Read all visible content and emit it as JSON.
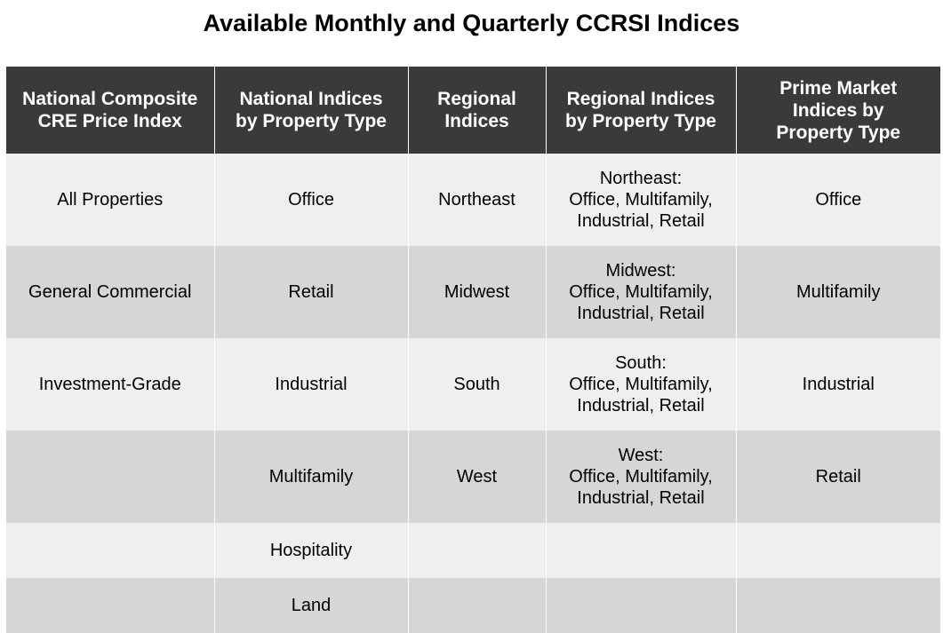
{
  "title": "Available Monthly and Quarterly CCRSI Indices",
  "table": {
    "headers": [
      {
        "line1": "National Composite",
        "line2": "CRE Price Index",
        "line3": ""
      },
      {
        "line1": "National Indices",
        "line2": "by Property Type",
        "line3": ""
      },
      {
        "line1": "Regional",
        "line2": "Indices",
        "line3": ""
      },
      {
        "line1": "Regional Indices",
        "line2": "by Property Type",
        "line3": ""
      },
      {
        "line1": "Prime Market",
        "line2": "Indices by",
        "line3": "Property Type"
      }
    ],
    "rows": [
      {
        "composite": "All Properties",
        "national": "Office",
        "regional": "Northeast",
        "regional_by_type": {
          "line1": "Northeast:",
          "line2": "Office, Multifamily,",
          "line3": "Industrial, Retail"
        },
        "prime": "Office"
      },
      {
        "composite": "General Commercial",
        "national": "Retail",
        "regional": "Midwest",
        "regional_by_type": {
          "line1": "Midwest:",
          "line2": "Office, Multifamily,",
          "line3": "Industrial, Retail"
        },
        "prime": "Multifamily"
      },
      {
        "composite": "Investment-Grade",
        "national": "Industrial",
        "regional": "South",
        "regional_by_type": {
          "line1": "South:",
          "line2": "Office, Multifamily,",
          "line3": "Industrial, Retail"
        },
        "prime": "Industrial"
      },
      {
        "composite": "",
        "national": "Multifamily",
        "regional": "West",
        "regional_by_type": {
          "line1": "West:",
          "line2": "Office, Multifamily,",
          "line3": "Industrial, Retail"
        },
        "prime": "Retail"
      },
      {
        "composite": "",
        "national": "Hospitality",
        "regional": "",
        "regional_by_type": {
          "line1": "",
          "line2": "",
          "line3": ""
        },
        "prime": ""
      },
      {
        "composite": "",
        "national": "Land",
        "regional": "",
        "regional_by_type": {
          "line1": "",
          "line2": "",
          "line3": ""
        },
        "prime": ""
      }
    ]
  },
  "colors": {
    "header_background": "#3a3a3a",
    "header_text": "#ffffff",
    "row_light": "#efefef",
    "row_dark": "#d6d6d6"
  }
}
